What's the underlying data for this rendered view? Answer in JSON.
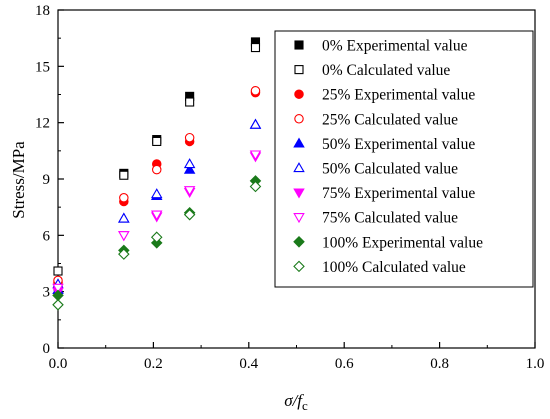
{
  "chart_data": {
    "type": "scatter",
    "xlabel": "σ/f",
    "xlabel_subscript": "c",
    "ylabel": "Stress/MPa",
    "xlim": [
      0.0,
      1.0
    ],
    "ylim": [
      0,
      18
    ],
    "x_ticks": [
      "0.0",
      "0.2",
      "0.4",
      "0.6",
      "0.8",
      "1.0"
    ],
    "y_ticks": [
      "0",
      "3",
      "6",
      "9",
      "12",
      "15",
      "18"
    ],
    "legend_position": "top-right",
    "series": [
      {
        "name": "0% Experimental value",
        "marker": "square",
        "filled": true,
        "color": "#000000",
        "x": [
          0.0,
          0.138,
          0.207,
          0.276,
          0.414
        ],
        "y": [
          3.3,
          9.3,
          11.1,
          13.4,
          16.3
        ]
      },
      {
        "name": "0% Calculated value",
        "marker": "square",
        "filled": false,
        "color": "#000000",
        "x": [
          0.0,
          0.138,
          0.207,
          0.276,
          0.414
        ],
        "y": [
          4.1,
          9.2,
          11.0,
          13.1,
          16.0
        ]
      },
      {
        "name": "25% Experimental value",
        "marker": "circle",
        "filled": true,
        "color": "#ff0000",
        "x": [
          0.0,
          0.138,
          0.207,
          0.276,
          0.414
        ],
        "y": [
          3.5,
          7.8,
          9.8,
          11.0,
          13.6
        ]
      },
      {
        "name": "25% Calculated value",
        "marker": "circle",
        "filled": false,
        "color": "#ff0000",
        "x": [
          0.0,
          0.138,
          0.207,
          0.276,
          0.414
        ],
        "y": [
          3.6,
          8.0,
          9.5,
          11.2,
          13.7
        ]
      },
      {
        "name": "50% Experimental value",
        "marker": "triangle-up",
        "filled": true,
        "color": "#0000ff",
        "x": [
          0.0,
          0.138,
          0.207,
          0.276,
          0.414
        ],
        "y": [
          3.1,
          6.9,
          8.1,
          9.5,
          11.9
        ]
      },
      {
        "name": "50% Calculated value",
        "marker": "triangle-up",
        "filled": false,
        "color": "#0000ff",
        "x": [
          0.0,
          0.138,
          0.207,
          0.276,
          0.414
        ],
        "y": [
          3.4,
          6.9,
          8.2,
          9.8,
          11.9
        ]
      },
      {
        "name": "75% Experimental value",
        "marker": "triangle-down",
        "filled": true,
        "color": "#ff00ff",
        "x": [
          0.0,
          0.138,
          0.207,
          0.276,
          0.414
        ],
        "y": [
          3.0,
          6.0,
          7.0,
          8.3,
          10.2
        ]
      },
      {
        "name": "75% Calculated value",
        "marker": "triangle-down",
        "filled": false,
        "color": "#ff00ff",
        "x": [
          0.0,
          0.138,
          0.207,
          0.276,
          0.414
        ],
        "y": [
          3.2,
          6.0,
          7.1,
          8.4,
          10.3
        ]
      },
      {
        "name": "100% Experimental value",
        "marker": "diamond",
        "filled": true,
        "color": "#1a7a1a",
        "x": [
          0.0,
          0.138,
          0.207,
          0.276,
          0.414
        ],
        "y": [
          2.8,
          5.2,
          5.6,
          7.2,
          8.9
        ]
      },
      {
        "name": "100% Calculated value",
        "marker": "diamond",
        "filled": false,
        "color": "#1a7a1a",
        "x": [
          0.0,
          0.138,
          0.207,
          0.276,
          0.414
        ],
        "y": [
          2.3,
          5.0,
          5.9,
          7.1,
          8.6
        ]
      }
    ]
  }
}
